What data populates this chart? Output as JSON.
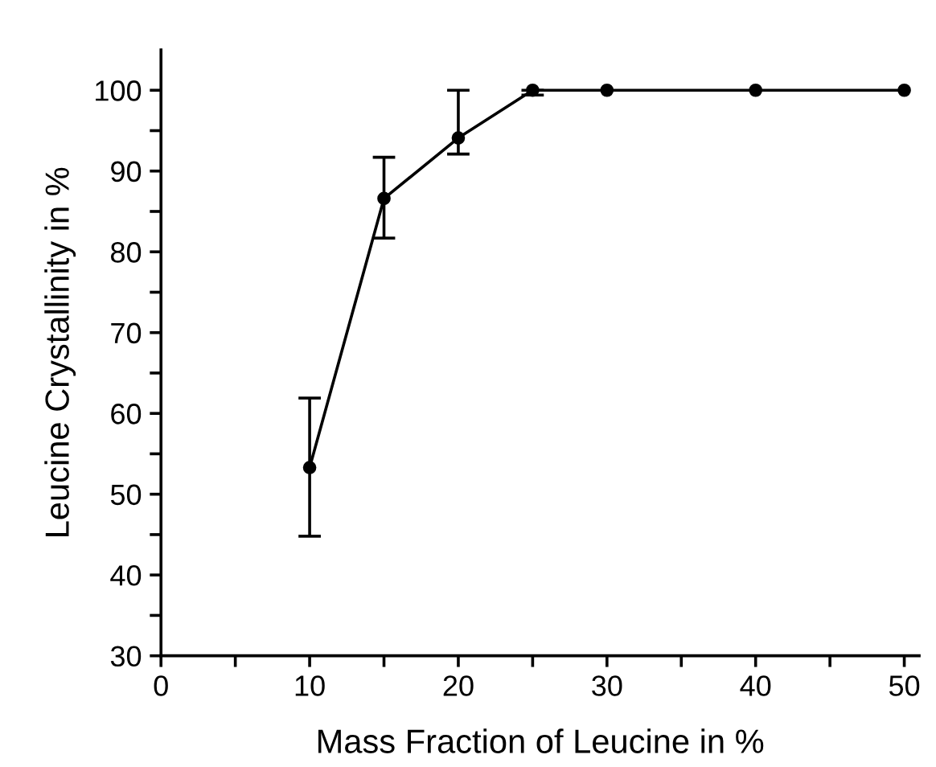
{
  "chart_data": {
    "type": "line",
    "xlabel": "Mass Fraction of Leucine in %",
    "ylabel": "Leucine Crystallinity in %",
    "x": [
      10,
      15,
      20,
      25,
      30,
      40,
      50
    ],
    "series": [
      {
        "color": "#000000",
        "values": [
          53.3,
          86.6,
          94.1,
          100,
          100,
          100,
          100
        ],
        "errors": [
          [
            44.8,
            61.9
          ],
          [
            81.7,
            91.7
          ],
          [
            92.1,
            100
          ],
          [
            99.4,
            100
          ],
          null,
          null,
          null
        ]
      }
    ],
    "xlim": [
      0,
      51
    ],
    "ylim": [
      30,
      105
    ],
    "xticks": [
      0,
      {
        "value": 5,
        "label": null
      },
      10,
      {
        "value": 15,
        "label": null
      },
      20,
      {
        "value": 25,
        "label": null
      },
      30,
      {
        "value": 35,
        "label": null
      },
      40,
      {
        "value": 45,
        "label": null
      },
      50
    ],
    "yticks": [
      30,
      {
        "value": 35,
        "label": null
      },
      40,
      {
        "value": 45,
        "label": null
      },
      50,
      {
        "value": 55,
        "label": null
      },
      60,
      {
        "value": 65,
        "label": null
      },
      70,
      {
        "value": 75,
        "label": null
      },
      80,
      {
        "value": 85,
        "label": null
      },
      90,
      {
        "value": 95,
        "label": null
      },
      100
    ],
    "marker": "circle",
    "line_style": "solid",
    "grid": false
  }
}
